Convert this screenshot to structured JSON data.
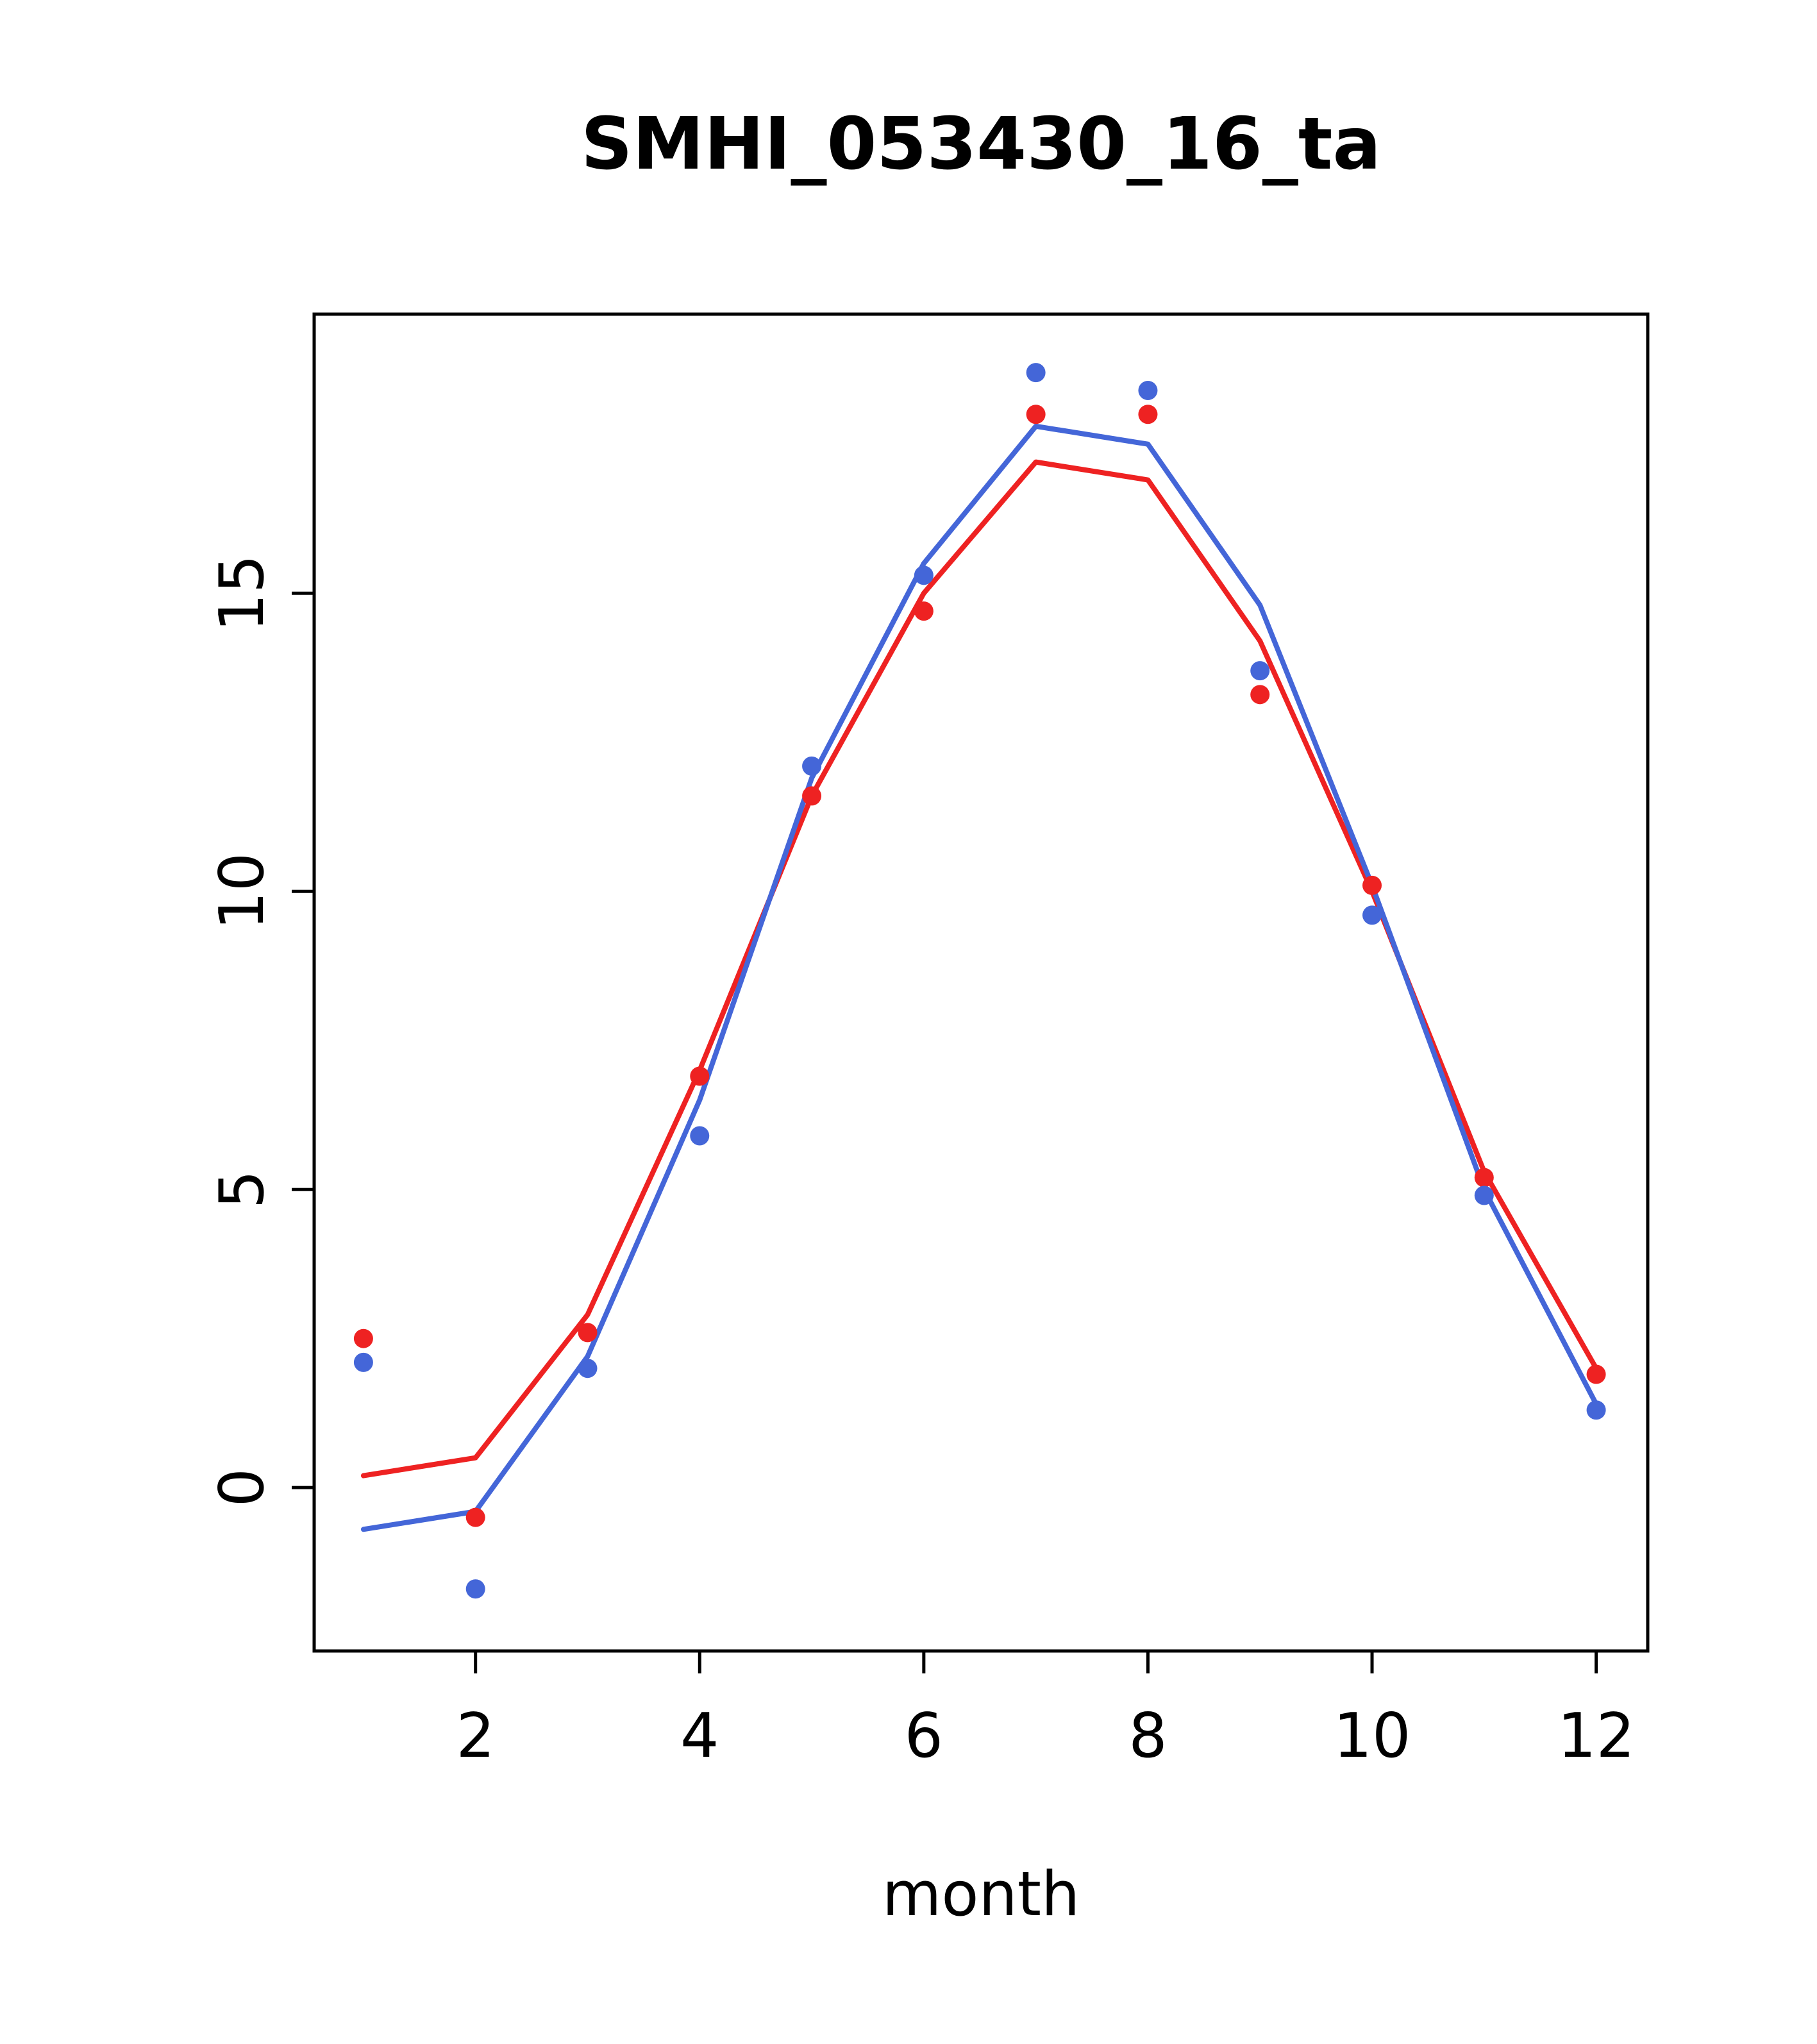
{
  "chart_data": {
    "type": "line",
    "title": "SMHI_053430_16_ta",
    "xlabel": "month",
    "ylabel": "",
    "x": [
      1,
      2,
      3,
      4,
      5,
      6,
      7,
      8,
      9,
      10,
      11,
      12
    ],
    "xlim": [
      0.56,
      12.46
    ],
    "ylim": [
      -2.74,
      19.68
    ],
    "xticks": [
      2,
      4,
      6,
      8,
      10,
      12
    ],
    "yticks": [
      0,
      5,
      10,
      15
    ],
    "grid": false,
    "legend_position": "none",
    "frame_color": "#000000",
    "series": [
      {
        "name": "red-line",
        "kind": "line",
        "color": "#ee2222",
        "values": [
          0.2,
          0.5,
          2.9,
          7.0,
          11.6,
          15.0,
          17.2,
          16.9,
          14.2,
          10.0,
          5.3,
          2.0
        ]
      },
      {
        "name": "blue-line",
        "kind": "line",
        "color": "#4466d8",
        "values": [
          -0.7,
          -0.4,
          2.2,
          6.5,
          11.9,
          15.5,
          17.8,
          17.5,
          14.8,
          10.1,
          5.0,
          1.4
        ]
      },
      {
        "name": "red-points",
        "kind": "points",
        "color": "#ee2222",
        "values": [
          2.5,
          -0.5,
          2.6,
          6.9,
          11.6,
          14.7,
          18.0,
          18.0,
          13.3,
          10.1,
          5.2,
          1.9
        ]
      },
      {
        "name": "blue-points",
        "kind": "points",
        "color": "#4466d8",
        "values": [
          2.1,
          -1.7,
          2.0,
          5.9,
          12.1,
          15.3,
          18.7,
          18.4,
          13.7,
          9.6,
          4.9,
          1.3
        ]
      }
    ]
  }
}
